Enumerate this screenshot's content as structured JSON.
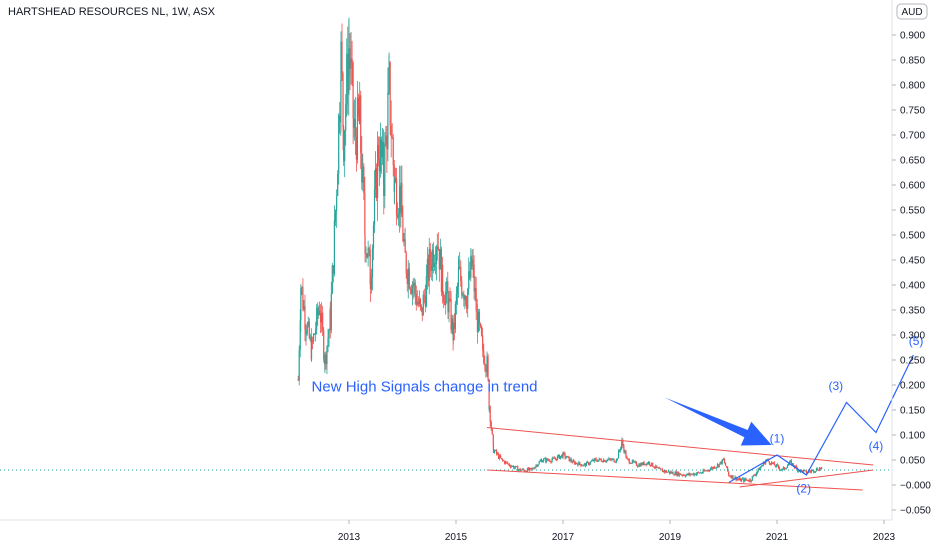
{
  "header": {
    "title": "HARTSHEAD RESOURCES NL, 1W, ASX",
    "currency": "AUD"
  },
  "colors": {
    "up": "#26a69a",
    "down": "#ef5350",
    "annotation": "#2962ff",
    "trendline": "#ef5350",
    "last_price_line": "#26a69a",
    "grid": "#f0f3fa",
    "axis_text": "#131722"
  },
  "chart_data": {
    "type": "candlestick",
    "title": "HARTSHEAD RESOURCES NL, 1W, ASX",
    "ylabel": "AUD",
    "ylim": [
      -0.08,
      0.96
    ],
    "xlim": [
      2010.8,
      2024.3
    ],
    "y_ticks": [
      0.9,
      0.85,
      0.8,
      0.75,
      0.7,
      0.65,
      0.6,
      0.55,
      0.5,
      0.45,
      0.4,
      0.35,
      0.3,
      0.25,
      0.2,
      0.15,
      0.1,
      0.05,
      -0.0,
      -0.05
    ],
    "y_tick_labels": [
      "0.900",
      "0.850",
      "0.800",
      "0.750",
      "0.700",
      "0.650",
      "0.600",
      "0.550",
      "0.500",
      "0.450",
      "0.400",
      "0.350",
      "0.300",
      "0.250",
      "0.200",
      "0.150",
      "0.100",
      "0.050",
      "−0.000",
      "−0.050"
    ],
    "x_ticks": [
      2013,
      2015,
      2017,
      2019,
      2021,
      2023
    ],
    "x_tick_labels": [
      "2013",
      "2015",
      "2017",
      "2019",
      "2021",
      "2023"
    ],
    "grid": false,
    "last_price": 0.03,
    "price_path": [
      [
        2012.05,
        0.21
      ],
      [
        2012.1,
        0.4
      ],
      [
        2012.2,
        0.32
      ],
      [
        2012.3,
        0.27
      ],
      [
        2012.45,
        0.36
      ],
      [
        2012.55,
        0.25
      ],
      [
        2012.65,
        0.33
      ],
      [
        2012.75,
        0.55
      ],
      [
        2012.85,
        0.85
      ],
      [
        2012.9,
        0.7
      ],
      [
        2013.0,
        0.88
      ],
      [
        2013.1,
        0.7
      ],
      [
        2013.2,
        0.72
      ],
      [
        2013.3,
        0.5
      ],
      [
        2013.4,
        0.42
      ],
      [
        2013.55,
        0.68
      ],
      [
        2013.65,
        0.62
      ],
      [
        2013.75,
        0.79
      ],
      [
        2013.85,
        0.6
      ],
      [
        2013.95,
        0.58
      ],
      [
        2014.05,
        0.45
      ],
      [
        2014.2,
        0.4
      ],
      [
        2014.35,
        0.34
      ],
      [
        2014.5,
        0.44
      ],
      [
        2014.65,
        0.5
      ],
      [
        2014.75,
        0.4
      ],
      [
        2014.85,
        0.37
      ],
      [
        2014.95,
        0.3
      ],
      [
        2015.05,
        0.42
      ],
      [
        2015.2,
        0.38
      ],
      [
        2015.3,
        0.44
      ],
      [
        2015.4,
        0.33
      ],
      [
        2015.5,
        0.27
      ],
      [
        2015.58,
        0.24
      ],
      [
        2015.62,
        0.16
      ],
      [
        2015.7,
        0.07
      ],
      [
        2015.85,
        0.05
      ],
      [
        2016.0,
        0.04
      ],
      [
        2016.2,
        0.03
      ],
      [
        2016.4,
        0.03
      ],
      [
        2016.6,
        0.05
      ],
      [
        2016.8,
        0.05
      ],
      [
        2017.0,
        0.06
      ],
      [
        2017.2,
        0.045
      ],
      [
        2017.4,
        0.04
      ],
      [
        2017.6,
        0.05
      ],
      [
        2017.8,
        0.05
      ],
      [
        2018.0,
        0.05
      ],
      [
        2018.1,
        0.085
      ],
      [
        2018.2,
        0.05
      ],
      [
        2018.4,
        0.04
      ],
      [
        2018.6,
        0.045
      ],
      [
        2018.8,
        0.03
      ],
      [
        2019.0,
        0.025
      ],
      [
        2019.3,
        0.02
      ],
      [
        2019.6,
        0.025
      ],
      [
        2019.9,
        0.04
      ],
      [
        2020.0,
        0.05
      ],
      [
        2020.1,
        0.02
      ],
      [
        2020.3,
        0.01
      ],
      [
        2020.5,
        0.01
      ],
      [
        2020.65,
        0.03
      ],
      [
        2020.8,
        0.05
      ],
      [
        2020.95,
        0.04
      ],
      [
        2021.1,
        0.03
      ],
      [
        2021.25,
        0.045
      ],
      [
        2021.4,
        0.03
      ],
      [
        2021.55,
        0.025
      ],
      [
        2021.7,
        0.03
      ],
      [
        2021.85,
        0.035
      ]
    ],
    "trendlines": [
      {
        "from": [
          2015.58,
          0.115
        ],
        "to": [
          2022.8,
          0.04
        ]
      },
      {
        "from": [
          2015.58,
          0.03
        ],
        "to": [
          2022.6,
          -0.01
        ]
      },
      {
        "from": [
          2020.3,
          -0.004
        ],
        "to": [
          2022.8,
          0.03
        ]
      }
    ],
    "wave_path": [
      [
        2020.1,
        0.005
      ],
      [
        2021.0,
        0.06
      ],
      [
        2021.55,
        0.02
      ],
      [
        2022.3,
        0.165
      ],
      [
        2022.85,
        0.105
      ],
      [
        2023.55,
        0.26
      ]
    ],
    "wave_labels": [
      {
        "text": "(1)",
        "x": 2021.0,
        "y": 0.085
      },
      {
        "text": "(2)",
        "x": 2021.5,
        "y": -0.015
      },
      {
        "text": "(3)",
        "x": 2022.1,
        "y": 0.19
      },
      {
        "text": "(4)",
        "x": 2022.85,
        "y": 0.07
      },
      {
        "text": "(5)",
        "x": 2023.6,
        "y": 0.28
      }
    ],
    "arrow": {
      "from": [
        2018.9,
        0.175
      ],
      "to": [
        2020.9,
        0.08
      ]
    },
    "annotation": {
      "text": "New High Signals change in trend",
      "x": 2012.3,
      "y": 0.187
    }
  }
}
